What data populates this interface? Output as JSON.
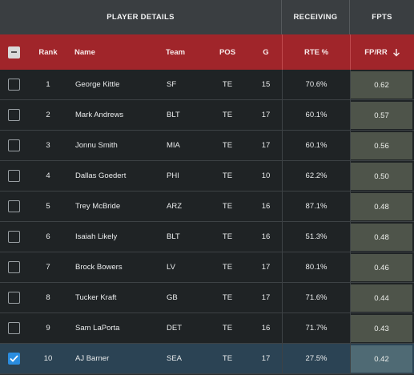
{
  "groups": {
    "player_details": "PLAYER DETAILS",
    "receiving": "RECEIVING",
    "fpts": "FPTS"
  },
  "columns": {
    "rank": "Rank",
    "name": "Name",
    "team": "Team",
    "pos": "POS",
    "g": "G",
    "rte": "RTE %",
    "fprr": "FP/RR"
  },
  "sort_icon": "arrow-down-icon",
  "colors": {
    "header_red": "#a0252a",
    "selected_row": "#2b4354",
    "checkbox_accent": "#2a8de0"
  },
  "rows": [
    {
      "rank": "1",
      "name": "George Kittle",
      "team": "SF",
      "pos": "TE",
      "g": "15",
      "rte": "70.6%",
      "fprr": "0.62",
      "checked": false
    },
    {
      "rank": "2",
      "name": "Mark Andrews",
      "team": "BLT",
      "pos": "TE",
      "g": "17",
      "rte": "60.1%",
      "fprr": "0.57",
      "checked": false
    },
    {
      "rank": "3",
      "name": "Jonnu Smith",
      "team": "MIA",
      "pos": "TE",
      "g": "17",
      "rte": "60.1%",
      "fprr": "0.56",
      "checked": false
    },
    {
      "rank": "4",
      "name": "Dallas Goedert",
      "team": "PHI",
      "pos": "TE",
      "g": "10",
      "rte": "62.2%",
      "fprr": "0.50",
      "checked": false
    },
    {
      "rank": "5",
      "name": "Trey McBride",
      "team": "ARZ",
      "pos": "TE",
      "g": "16",
      "rte": "87.1%",
      "fprr": "0.48",
      "checked": false
    },
    {
      "rank": "6",
      "name": "Isaiah Likely",
      "team": "BLT",
      "pos": "TE",
      "g": "16",
      "rte": "51.3%",
      "fprr": "0.48",
      "checked": false
    },
    {
      "rank": "7",
      "name": "Brock Bowers",
      "team": "LV",
      "pos": "TE",
      "g": "17",
      "rte": "80.1%",
      "fprr": "0.46",
      "checked": false
    },
    {
      "rank": "8",
      "name": "Tucker Kraft",
      "team": "GB",
      "pos": "TE",
      "g": "17",
      "rte": "71.6%",
      "fprr": "0.44",
      "checked": false
    },
    {
      "rank": "9",
      "name": "Sam LaPorta",
      "team": "DET",
      "pos": "TE",
      "g": "16",
      "rte": "71.7%",
      "fprr": "0.43",
      "checked": false
    },
    {
      "rank": "10",
      "name": "AJ Barner",
      "team": "SEA",
      "pos": "TE",
      "g": "17",
      "rte": "27.5%",
      "fprr": "0.42",
      "checked": true
    }
  ]
}
